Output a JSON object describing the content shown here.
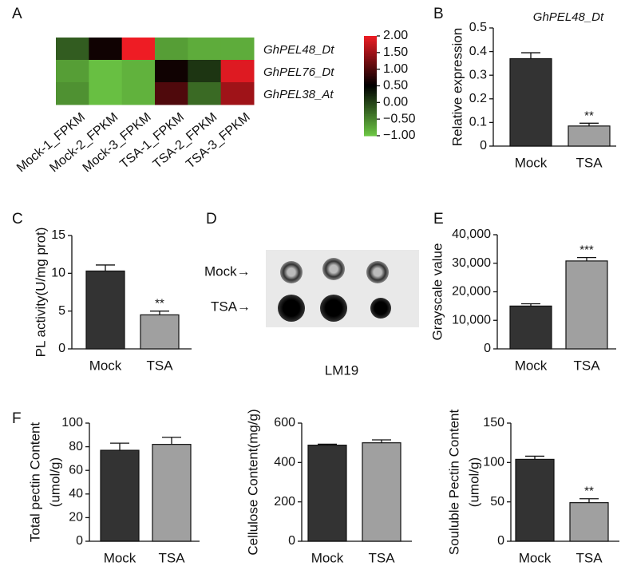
{
  "chart_data": [
    {
      "type": "heatmap",
      "label": "A",
      "x": [
        "Mock-1_FPKM",
        "Mock-2_FPKM",
        "Mock-3_FPKM",
        "TSA-1_FPKM",
        "TSA-2_FPKM",
        "TSA-3_FPKM"
      ],
      "y": [
        "GhPEL48_Dt",
        "GhPEL76_Dt",
        "GhPEL38_At"
      ],
      "values": [
        [
          -0.2,
          0.6,
          2.0,
          -0.7,
          -0.8,
          -0.8
        ],
        [
          -0.7,
          -0.95,
          -0.85,
          0.6,
          0.1,
          1.9
        ],
        [
          -0.6,
          -0.95,
          -0.85,
          1.0,
          -0.3,
          1.5
        ]
      ],
      "colors": [
        "#6cc644",
        "#000000",
        "#ee1c24"
      ],
      "clim": [
        -1,
        2
      ],
      "cticks": [
        {
          "value": 2,
          "label": "2.00"
        },
        {
          "value": 1.5,
          "label": "1.50"
        },
        {
          "value": 1,
          "label": "1.00"
        },
        {
          "value": 0.5,
          "label": "0.50"
        },
        {
          "value": 0,
          "label": "0.00"
        },
        {
          "value": -0.5,
          "label": "−0.50"
        },
        {
          "value": -1,
          "label": "−1.00"
        }
      ]
    },
    {
      "type": "bar",
      "label": "B",
      "title": "GhPEL48_Dt",
      "ylabel": [
        "Relative expression"
      ],
      "categories": [
        "Mock",
        "TSA"
      ],
      "values": [
        0.37,
        0.085
      ],
      "errors": [
        0.025,
        0.012
      ],
      "sig_labels": [
        null,
        "**"
      ],
      "colors": [
        "#333333",
        "#a0a0a0"
      ],
      "ylim": [
        0,
        0.5
      ],
      "yticks": [
        0,
        0.1,
        0.2,
        0.3,
        0.4,
        0.5
      ]
    },
    {
      "type": "bar",
      "label": "C",
      "ylabel": [
        "PL activity(U/mg prot)"
      ],
      "categories": [
        "Mock",
        "TSA"
      ],
      "values": [
        10.3,
        4.5
      ],
      "errors": [
        0.8,
        0.5
      ],
      "sig_labels": [
        null,
        "**"
      ],
      "colors": [
        "#333333",
        "#a0a0a0"
      ],
      "ylim": [
        0,
        15
      ],
      "yticks": [
        0,
        5,
        10,
        15
      ]
    },
    {
      "type": "dot-blot",
      "label": "D",
      "row_labels": [
        "Mock→",
        "TSA→"
      ],
      "caption": "LM19"
    },
    {
      "type": "bar",
      "label": "E",
      "ylabel": [
        "Grayscale value"
      ],
      "categories": [
        "Mock",
        "TSA"
      ],
      "values": [
        15000,
        30800
      ],
      "errors": [
        800,
        1200
      ],
      "sig_labels": [
        null,
        "***"
      ],
      "colors": [
        "#333333",
        "#a0a0a0"
      ],
      "ylim": [
        0,
        40000
      ],
      "yticks": [
        0,
        {
          "value": 10000,
          "label": "10,000"
        },
        {
          "value": 20000,
          "label": "20,000"
        },
        {
          "value": 30000,
          "label": "30,000"
        },
        {
          "value": 40000,
          "label": "40,000"
        }
      ]
    },
    {
      "type": "bar",
      "label": "F",
      "ylabel": [
        "Total pectin Content",
        "(umol/g)"
      ],
      "categories": [
        "Mock",
        "TSA"
      ],
      "values": [
        77,
        82
      ],
      "errors": [
        6,
        6
      ],
      "colors": [
        "#333333",
        "#a0a0a0"
      ],
      "ylim": [
        0,
        100
      ],
      "yticks": [
        0,
        20,
        40,
        60,
        80,
        100
      ]
    },
    {
      "type": "bar",
      "ylabel": [
        "Cellulose Content(mg/g)"
      ],
      "categories": [
        "Mock",
        "TSA"
      ],
      "values": [
        488,
        500
      ],
      "errors": [
        5,
        15
      ],
      "colors": [
        "#333333",
        "#a0a0a0"
      ],
      "ylim": [
        0,
        600
      ],
      "yticks": [
        0,
        200,
        400,
        600
      ]
    },
    {
      "type": "bar",
      "ylabel": [
        "Souluble Pectin Content",
        "(umol/g)"
      ],
      "categories": [
        "Mock",
        "TSA"
      ],
      "values": [
        104,
        49
      ],
      "errors": [
        4,
        5
      ],
      "sig_labels": [
        null,
        "**"
      ],
      "colors": [
        "#333333",
        "#a0a0a0"
      ],
      "ylim": [
        0,
        150
      ],
      "yticks": [
        0,
        50,
        100,
        150
      ]
    }
  ]
}
